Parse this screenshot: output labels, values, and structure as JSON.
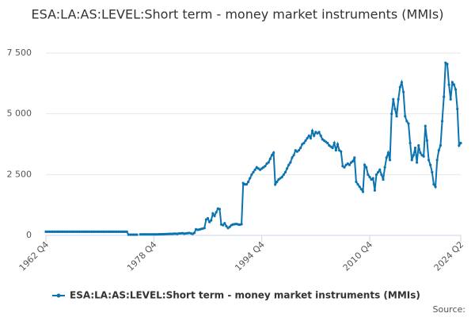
{
  "chart_data": {
    "type": "line",
    "title": "ESA:LA:AS:LEVEL:Short term - money market instruments (MMIs)",
    "source": "Source:",
    "categories": [
      "1962 Q4",
      null,
      null,
      null,
      null,
      null,
      null,
      null,
      null,
      null,
      null,
      null,
      null,
      null,
      null,
      null,
      null,
      null,
      null,
      null,
      null,
      null,
      null,
      null,
      null,
      null,
      null,
      null,
      null,
      null,
      null,
      null,
      null,
      null,
      null,
      null,
      null,
      null,
      null,
      null,
      null,
      null,
      null,
      null,
      null,
      null,
      null,
      null,
      null,
      null,
      null,
      null,
      null,
      null,
      null,
      null,
      null,
      null,
      null,
      null,
      null,
      null,
      null,
      null,
      "1978 Q4",
      null,
      null,
      null,
      null,
      null,
      null,
      null,
      null,
      null,
      null,
      null,
      null,
      null,
      null,
      null,
      null,
      null,
      null,
      null,
      null,
      null,
      null,
      null,
      null,
      null,
      null,
      null,
      null,
      null,
      null,
      null,
      null,
      null,
      null,
      null,
      null,
      null,
      null,
      null,
      null,
      null,
      null,
      null,
      null,
      null,
      null,
      null,
      null,
      null,
      null,
      null,
      null,
      null,
      null,
      null,
      null,
      null,
      null,
      null,
      null,
      null,
      null,
      null,
      "1994 Q4",
      null,
      null,
      null,
      null,
      null,
      null,
      null,
      null,
      null,
      null,
      null,
      null,
      null,
      null,
      null,
      null,
      null,
      null,
      null,
      null,
      null,
      null,
      null,
      null,
      null,
      null,
      null,
      null,
      null,
      null,
      null,
      null,
      null,
      null,
      null,
      null,
      null,
      null,
      null,
      null,
      null,
      null,
      null,
      null,
      null,
      null,
      null,
      null,
      null,
      null,
      null,
      null,
      null,
      null,
      null,
      null,
      null,
      null,
      null,
      null,
      null,
      null,
      null,
      "2010 Q4",
      null,
      null,
      null,
      null,
      null,
      null,
      null,
      null,
      null,
      null,
      null,
      null,
      null,
      null,
      null,
      null,
      null,
      null,
      null,
      null,
      null,
      null,
      null,
      null,
      null,
      null,
      null,
      null,
      null,
      null,
      null,
      null,
      null,
      null,
      null,
      null,
      null,
      null,
      null,
      null,
      null,
      null,
      null,
      null,
      null,
      null,
      null,
      null,
      null,
      null,
      null,
      null,
      null,
      "2024 Q2"
    ],
    "series": [
      {
        "name": "ESA:LA:AS:LEVEL:Short term - money market instruments (MMIs)",
        "color": "#0b74b0",
        "values": [
          150,
          150,
          150,
          150,
          150,
          150,
          150,
          150,
          150,
          150,
          150,
          150,
          150,
          150,
          150,
          150,
          150,
          150,
          150,
          150,
          150,
          150,
          150,
          150,
          150,
          150,
          150,
          150,
          150,
          150,
          150,
          150,
          150,
          150,
          150,
          150,
          150,
          150,
          150,
          150,
          150,
          150,
          150,
          150,
          150,
          150,
          150,
          150,
          150,
          30,
          30,
          30,
          30,
          30,
          30,
          null,
          40,
          40,
          40,
          40,
          40,
          40,
          40,
          40,
          40,
          40,
          40,
          45,
          45,
          50,
          50,
          55,
          55,
          60,
          60,
          60,
          70,
          70,
          60,
          80,
          80,
          90,
          70,
          80,
          90,
          100,
          80,
          60,
          100,
          250,
          230,
          240,
          260,
          280,
          300,
          650,
          700,
          550,
          620,
          900,
          800,
          950,
          1100,
          1080,
          450,
          420,
          500,
          380,
          300,
          350,
          420,
          450,
          460,
          470,
          450,
          440,
          460,
          2150,
          2100,
          2100,
          2200,
          2350,
          2500,
          2600,
          2700,
          2800,
          2750,
          2700,
          2750,
          2800,
          2850,
          2950,
          3000,
          3150,
          3300,
          3400,
          2100,
          2200,
          2300,
          2350,
          2400,
          2500,
          2600,
          2750,
          2900,
          3000,
          3200,
          3300,
          3500,
          3450,
          3500,
          3600,
          3750,
          3800,
          3900,
          4000,
          4100,
          4000,
          4300,
          4100,
          4250,
          4200,
          4250,
          4100,
          3950,
          3900,
          3850,
          3800,
          3700,
          3650,
          3600,
          3800,
          3500,
          3750,
          3500,
          3450,
          2850,
          2800,
          2900,
          2950,
          2900,
          3000,
          3050,
          3200,
          2200,
          2100,
          2000,
          1900,
          1800,
          2900,
          2800,
          2500,
          2400,
          2300,
          2350,
          1850,
          2500,
          2600,
          2700,
          2500,
          2300,
          2800,
          3200,
          3400,
          3100,
          5000,
          5600,
          5200,
          4900,
          5600,
          6100,
          6300,
          5900,
          4900,
          4700,
          4600,
          3800,
          3100,
          3300,
          3600,
          3000,
          3700,
          3400,
          3300,
          3250,
          4500,
          3900,
          3100,
          2900,
          2600,
          2100,
          2000,
          3100,
          3500,
          3700,
          4700,
          5700,
          7100,
          7050,
          6200,
          5600,
          6300,
          6200,
          6000,
          5200,
          3700,
          3800
        ]
      }
    ],
    "ylim": [
      0,
      7500
    ],
    "yticks": [
      0,
      {
        "value": 2500,
        "label": "2 500"
      },
      {
        "value": 5000,
        "label": "5 000"
      },
      {
        "value": 7500,
        "label": "7 500"
      }
    ],
    "grid": true
  }
}
